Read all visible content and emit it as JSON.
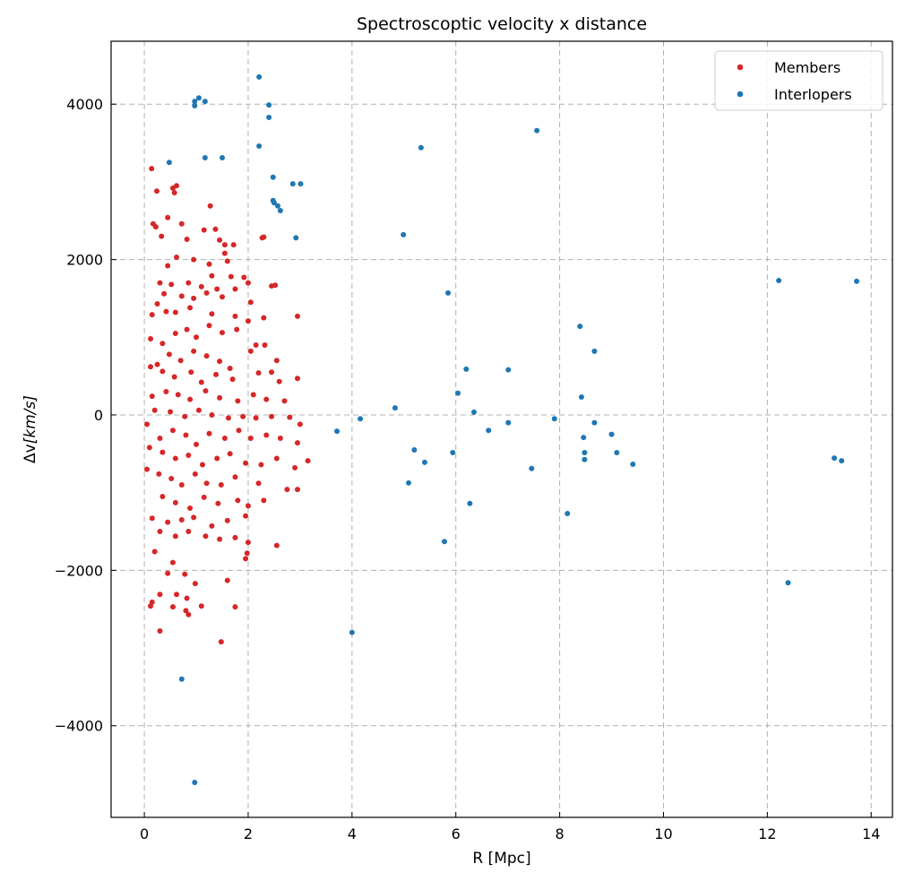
{
  "chart_data": {
    "type": "scatter",
    "title": "Spectroscoptic velocity x distance",
    "xlabel": "R [Mpc]",
    "ylabel_prefix": "Δv",
    "ylabel_unit": "[km/s]",
    "xlim": [
      -0.64,
      14.41
    ],
    "ylim": [
      -5180,
      4810
    ],
    "xticks": [
      0,
      2,
      4,
      6,
      8,
      10,
      12,
      14
    ],
    "yticks": [
      -4000,
      -2000,
      0,
      2000,
      4000
    ],
    "xtick_labels": [
      "0",
      "2",
      "4",
      "6",
      "8",
      "10",
      "12",
      "14"
    ],
    "ytick_labels": [
      "−4000",
      "−2000",
      "0",
      "2000",
      "4000"
    ],
    "grid": true,
    "legend_position": "top-right",
    "series": [
      {
        "name": "Members",
        "color": "#d62728",
        "points": [
          [
            0.14,
            3170
          ],
          [
            0.24,
            2880
          ],
          [
            0.55,
            2920
          ],
          [
            0.62,
            2950
          ],
          [
            0.58,
            2860
          ],
          [
            1.27,
            2690
          ],
          [
            0.45,
            2540
          ],
          [
            0.17,
            2460
          ],
          [
            0.22,
            2420
          ],
          [
            0.72,
            2460
          ],
          [
            0.82,
            2260
          ],
          [
            0.33,
            2300
          ],
          [
            1.37,
            2390
          ],
          [
            1.15,
            2380
          ],
          [
            1.45,
            2250
          ],
          [
            1.55,
            2190
          ],
          [
            1.72,
            2190
          ],
          [
            2.27,
            2280
          ],
          [
            2.3,
            2290
          ],
          [
            0.95,
            2000
          ],
          [
            0.62,
            2030
          ],
          [
            1.25,
            1940
          ],
          [
            0.45,
            1920
          ],
          [
            1.55,
            2080
          ],
          [
            1.6,
            1980
          ],
          [
            1.3,
            1790
          ],
          [
            1.67,
            1780
          ],
          [
            1.92,
            1770
          ],
          [
            2.0,
            1700
          ],
          [
            2.45,
            1660
          ],
          [
            2.52,
            1670
          ],
          [
            0.3,
            1700
          ],
          [
            0.52,
            1680
          ],
          [
            0.85,
            1700
          ],
          [
            1.1,
            1650
          ],
          [
            1.4,
            1620
          ],
          [
            1.75,
            1620
          ],
          [
            0.25,
            1430
          ],
          [
            0.38,
            1560
          ],
          [
            0.72,
            1530
          ],
          [
            0.95,
            1500
          ],
          [
            1.2,
            1570
          ],
          [
            1.5,
            1520
          ],
          [
            2.05,
            1450
          ],
          [
            0.15,
            1290
          ],
          [
            0.42,
            1330
          ],
          [
            0.6,
            1320
          ],
          [
            0.88,
            1380
          ],
          [
            1.3,
            1300
          ],
          [
            1.75,
            1270
          ],
          [
            2.0,
            1210
          ],
          [
            2.3,
            1250
          ],
          [
            2.95,
            1270
          ],
          [
            0.12,
            980
          ],
          [
            0.35,
            920
          ],
          [
            0.6,
            1050
          ],
          [
            0.82,
            1100
          ],
          [
            1.0,
            1000
          ],
          [
            1.25,
            1150
          ],
          [
            1.5,
            1060
          ],
          [
            1.78,
            1100
          ],
          [
            2.15,
            900
          ],
          [
            2.32,
            900
          ],
          [
            2.55,
            700
          ],
          [
            0.25,
            650
          ],
          [
            0.48,
            780
          ],
          [
            0.7,
            700
          ],
          [
            0.95,
            820
          ],
          [
            1.2,
            760
          ],
          [
            1.45,
            690
          ],
          [
            1.65,
            600
          ],
          [
            2.05,
            820
          ],
          [
            2.45,
            550
          ],
          [
            2.95,
            470
          ],
          [
            0.12,
            620
          ],
          [
            0.35,
            560
          ],
          [
            0.58,
            490
          ],
          [
            0.9,
            550
          ],
          [
            1.1,
            420
          ],
          [
            1.38,
            520
          ],
          [
            1.7,
            460
          ],
          [
            2.2,
            540
          ],
          [
            2.6,
            430
          ],
          [
            0.15,
            240
          ],
          [
            0.42,
            300
          ],
          [
            0.65,
            260
          ],
          [
            0.88,
            200
          ],
          [
            1.18,
            310
          ],
          [
            1.45,
            220
          ],
          [
            1.8,
            180
          ],
          [
            2.1,
            260
          ],
          [
            2.35,
            200
          ],
          [
            2.7,
            180
          ],
          [
            0.2,
            60
          ],
          [
            0.5,
            40
          ],
          [
            0.78,
            -20
          ],
          [
            1.05,
            60
          ],
          [
            1.3,
            0
          ],
          [
            1.62,
            -40
          ],
          [
            1.9,
            -20
          ],
          [
            2.15,
            -40
          ],
          [
            2.45,
            -20
          ],
          [
            2.8,
            -30
          ],
          [
            3.0,
            -120
          ],
          [
            0.05,
            -120
          ],
          [
            0.3,
            -300
          ],
          [
            0.55,
            -200
          ],
          [
            0.8,
            -260
          ],
          [
            1.0,
            -380
          ],
          [
            1.25,
            -240
          ],
          [
            1.55,
            -300
          ],
          [
            1.82,
            -200
          ],
          [
            2.05,
            -300
          ],
          [
            2.35,
            -260
          ],
          [
            2.62,
            -300
          ],
          [
            2.95,
            -360
          ],
          [
            3.15,
            -590
          ],
          [
            0.1,
            -420
          ],
          [
            0.35,
            -480
          ],
          [
            0.6,
            -560
          ],
          [
            0.85,
            -520
          ],
          [
            1.12,
            -640
          ],
          [
            1.4,
            -560
          ],
          [
            1.65,
            -500
          ],
          [
            1.95,
            -620
          ],
          [
            2.25,
            -640
          ],
          [
            2.55,
            -560
          ],
          [
            2.9,
            -680
          ],
          [
            0.05,
            -700
          ],
          [
            0.28,
            -760
          ],
          [
            0.52,
            -820
          ],
          [
            0.72,
            -900
          ],
          [
            0.98,
            -760
          ],
          [
            1.2,
            -880
          ],
          [
            1.48,
            -900
          ],
          [
            1.75,
            -800
          ],
          [
            2.2,
            -880
          ],
          [
            2.75,
            -960
          ],
          [
            2.95,
            -960
          ],
          [
            0.35,
            -1050
          ],
          [
            0.6,
            -1130
          ],
          [
            0.88,
            -1200
          ],
          [
            1.15,
            -1060
          ],
          [
            1.42,
            -1140
          ],
          [
            1.8,
            -1100
          ],
          [
            2.0,
            -1170
          ],
          [
            2.3,
            -1100
          ],
          [
            0.15,
            -1330
          ],
          [
            0.45,
            -1380
          ],
          [
            0.72,
            -1350
          ],
          [
            0.95,
            -1320
          ],
          [
            1.3,
            -1430
          ],
          [
            1.6,
            -1360
          ],
          [
            1.95,
            -1300
          ],
          [
            0.3,
            -1500
          ],
          [
            0.6,
            -1560
          ],
          [
            0.85,
            -1500
          ],
          [
            1.18,
            -1560
          ],
          [
            1.45,
            -1600
          ],
          [
            1.75,
            -1580
          ],
          [
            2.0,
            -1640
          ],
          [
            2.55,
            -1680
          ],
          [
            1.98,
            -1780
          ],
          [
            1.95,
            -1850
          ],
          [
            0.2,
            -1760
          ],
          [
            0.55,
            -1900
          ],
          [
            0.78,
            -2050
          ],
          [
            0.45,
            -2040
          ],
          [
            0.98,
            -2170
          ],
          [
            1.6,
            -2130
          ],
          [
            0.3,
            -2310
          ],
          [
            0.62,
            -2310
          ],
          [
            0.82,
            -2360
          ],
          [
            0.15,
            -2410
          ],
          [
            0.12,
            -2460
          ],
          [
            0.55,
            -2470
          ],
          [
            0.8,
            -2520
          ],
          [
            1.1,
            -2460
          ],
          [
            1.75,
            -2470
          ],
          [
            0.3,
            -2780
          ],
          [
            0.85,
            -2570
          ],
          [
            1.48,
            -2920
          ]
        ]
      },
      {
        "name": "Interlopers",
        "color": "#1f77b4",
        "points": [
          [
            0.97,
            4035
          ],
          [
            1.05,
            4080
          ],
          [
            1.17,
            4035
          ],
          [
            0.97,
            3980
          ],
          [
            2.21,
            4350
          ],
          [
            2.4,
            3990
          ],
          [
            2.4,
            3830
          ],
          [
            0.48,
            3250
          ],
          [
            1.17,
            3310
          ],
          [
            1.5,
            3310
          ],
          [
            2.21,
            3460
          ],
          [
            2.48,
            3060
          ],
          [
            2.48,
            2760
          ],
          [
            2.5,
            2730
          ],
          [
            2.57,
            2690
          ],
          [
            2.62,
            2630
          ],
          [
            2.86,
            2975
          ],
          [
            3.01,
            2975
          ],
          [
            2.92,
            2280
          ],
          [
            5.33,
            3440
          ],
          [
            7.56,
            3660
          ],
          [
            4.99,
            2320
          ],
          [
            5.85,
            1570
          ],
          [
            12.22,
            1730
          ],
          [
            13.72,
            1720
          ],
          [
            8.39,
            1140
          ],
          [
            8.67,
            820
          ],
          [
            6.2,
            590
          ],
          [
            7.01,
            580
          ],
          [
            6.04,
            280
          ],
          [
            8.42,
            230
          ],
          [
            4.83,
            90
          ],
          [
            6.35,
            35
          ],
          [
            3.71,
            -210
          ],
          [
            4.16,
            -50
          ],
          [
            7.01,
            -100
          ],
          [
            6.63,
            -200
          ],
          [
            7.9,
            -50
          ],
          [
            8.67,
            -100
          ],
          [
            8.46,
            -290
          ],
          [
            9.0,
            -250
          ],
          [
            8.48,
            -485
          ],
          [
            8.48,
            -575
          ],
          [
            9.1,
            -485
          ],
          [
            9.41,
            -635
          ],
          [
            7.46,
            -690
          ],
          [
            13.29,
            -555
          ],
          [
            13.43,
            -590
          ],
          [
            5.2,
            -450
          ],
          [
            5.4,
            -610
          ],
          [
            5.94,
            -485
          ],
          [
            5.09,
            -875
          ],
          [
            6.27,
            -1140
          ],
          [
            8.15,
            -1270
          ],
          [
            5.78,
            -1630
          ],
          [
            12.4,
            -2160
          ],
          [
            4.0,
            -2800
          ],
          [
            0.72,
            -3400
          ],
          [
            0.97,
            -4730
          ]
        ]
      }
    ]
  }
}
